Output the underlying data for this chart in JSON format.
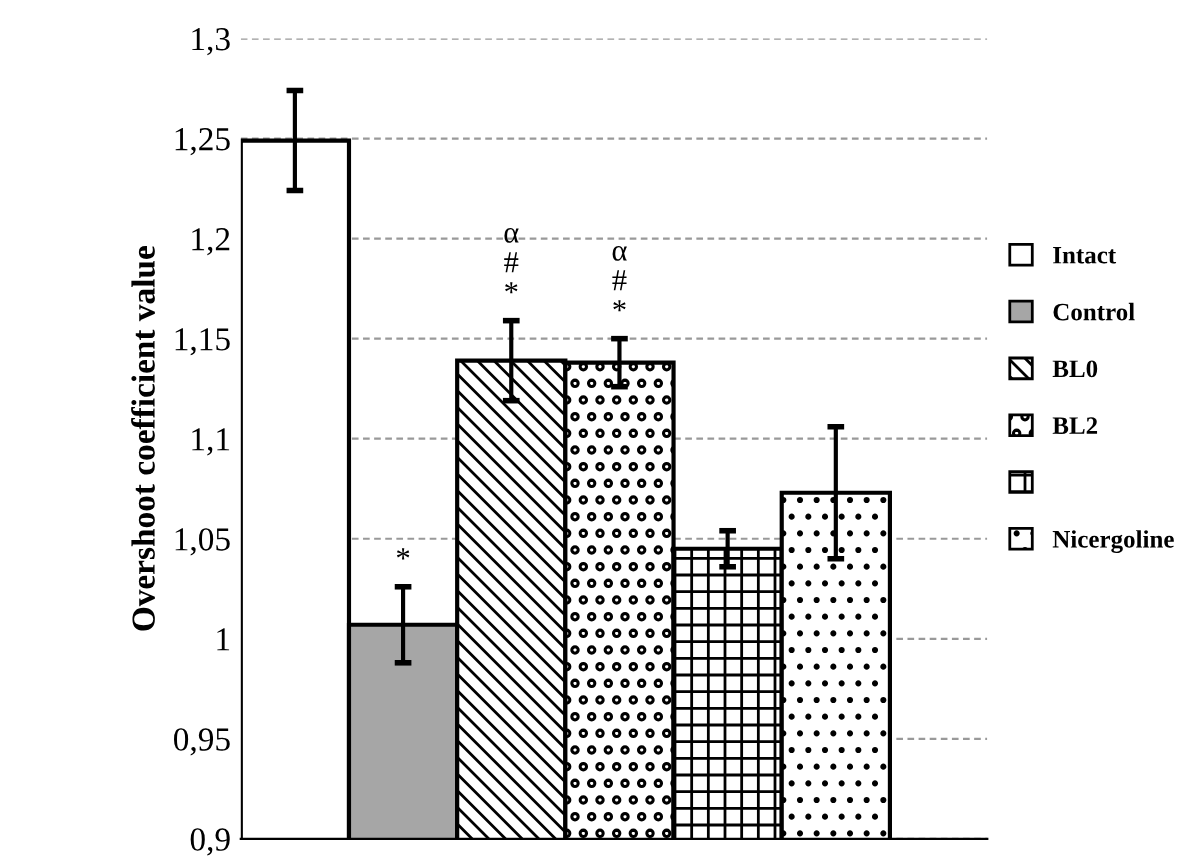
{
  "chart_data": {
    "type": "bar",
    "ylabel": "Overshoot coefficient value",
    "categories": [
      null
    ],
    "series": [
      {
        "name": "Intact",
        "color": "#ffffff",
        "values": [
          1.249
        ],
        "errors": [
          0.025
        ]
      },
      {
        "name": "Control",
        "color": "#a6a6a6",
        "values": [
          1.007
        ],
        "errors": [
          0.019
        ]
      },
      {
        "name": "BL0",
        "color": "#000000",
        "values": [
          1.139
        ],
        "errors": [
          0.02
        ]
      },
      {
        "name": "BL2",
        "color": "#000000",
        "values": [
          1.138
        ],
        "errors": [
          0.012
        ]
      },
      {
        "color": "#000000",
        "values": [
          1.045
        ],
        "errors": [
          0.009
        ]
      },
      {
        "name": "Nicergoline",
        "color": "#000000",
        "values": [
          1.073
        ],
        "errors": [
          0.033
        ]
      }
    ],
    "annotations": [
      "*",
      "α\n#\n*",
      "α\n#\n*"
    ],
    "ylim": [
      0.9,
      1.3
    ],
    "yticks": [
      {
        "value": 0.9,
        "label": "0,9"
      },
      {
        "value": 0.95,
        "label": "0,95"
      },
      {
        "value": 1,
        "label": "1"
      },
      {
        "value": 1.05,
        "label": "1,05"
      },
      {
        "value": 1.1,
        "label": "1,1"
      },
      {
        "value": 1.15,
        "label": "1,15"
      },
      {
        "value": 1.2,
        "label": "1,2"
      },
      {
        "value": 1.25,
        "label": "1,25"
      },
      {
        "value": 1.3,
        "label": "1,3"
      }
    ],
    "grid": "y",
    "legend": "right"
  }
}
